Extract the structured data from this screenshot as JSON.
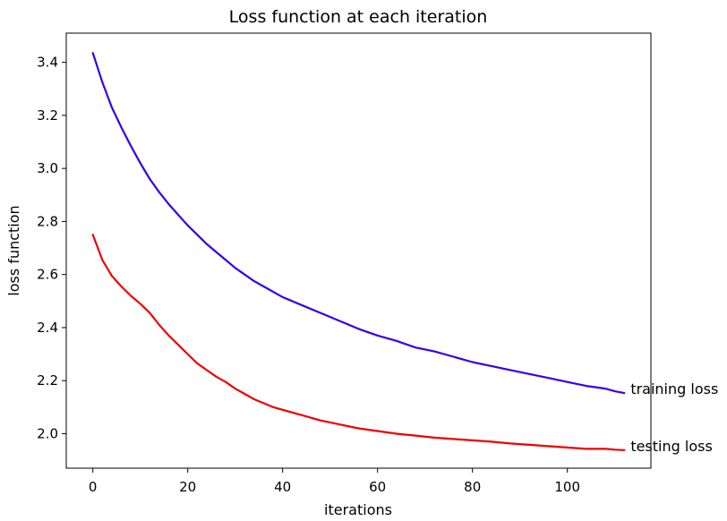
{
  "chart_data": {
    "type": "line",
    "title": "Loss function at each iteration",
    "xlabel": "iterations",
    "ylabel": "loss function",
    "xlim": [
      -5.6,
      117.6
    ],
    "ylim": [
      1.87,
      3.51
    ],
    "xticks": [
      0,
      20,
      40,
      60,
      80,
      100
    ],
    "yticks": [
      2.0,
      2.2,
      2.4,
      2.6,
      2.8,
      3.0,
      3.2,
      3.4
    ],
    "grid": false,
    "legend": "none",
    "series": [
      {
        "name": "training loss",
        "color": "#3300ee",
        "x": [
          0,
          2,
          4,
          6,
          8,
          10,
          12,
          14,
          16,
          18,
          20,
          22,
          24,
          26,
          28,
          30,
          32,
          34,
          36,
          38,
          40,
          44,
          48,
          52,
          56,
          60,
          64,
          68,
          72,
          76,
          80,
          84,
          88,
          92,
          96,
          100,
          104,
          108,
          110,
          112
        ],
        "y": [
          3.435,
          3.325,
          3.23,
          3.155,
          3.085,
          3.02,
          2.96,
          2.91,
          2.865,
          2.825,
          2.785,
          2.75,
          2.715,
          2.685,
          2.655,
          2.625,
          2.6,
          2.575,
          2.555,
          2.535,
          2.515,
          2.485,
          2.455,
          2.425,
          2.395,
          2.37,
          2.35,
          2.325,
          2.31,
          2.29,
          2.27,
          2.255,
          2.24,
          2.225,
          2.21,
          2.195,
          2.18,
          2.17,
          2.16,
          2.153
        ]
      },
      {
        "name": "testing loss",
        "color": "#ee0000",
        "x": [
          0,
          2,
          4,
          6,
          8,
          10,
          12,
          14,
          16,
          18,
          20,
          22,
          24,
          26,
          28,
          30,
          32,
          34,
          36,
          38,
          40,
          44,
          48,
          52,
          56,
          60,
          64,
          68,
          72,
          76,
          80,
          84,
          88,
          92,
          96,
          100,
          104,
          108,
          110,
          112
        ],
        "y": [
          2.75,
          2.655,
          2.595,
          2.555,
          2.52,
          2.49,
          2.455,
          2.41,
          2.37,
          2.335,
          2.3,
          2.265,
          2.24,
          2.215,
          2.195,
          2.17,
          2.15,
          2.13,
          2.115,
          2.1,
          2.09,
          2.07,
          2.05,
          2.035,
          2.02,
          2.01,
          2.0,
          1.993,
          1.985,
          1.98,
          1.975,
          1.97,
          1.963,
          1.958,
          1.953,
          1.948,
          1.943,
          1.943,
          1.94,
          1.938
        ]
      }
    ],
    "annotations": [
      {
        "text": "training loss",
        "series": 0
      },
      {
        "text": "testing loss",
        "series": 1
      }
    ]
  }
}
